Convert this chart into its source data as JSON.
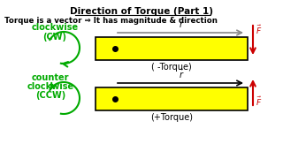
{
  "title": "Direction of Torque (Part 1)",
  "subtitle": "Torque is a vector ⇒ It has magnitude & direction",
  "bg_color": "#ffffff",
  "bar_color": "#ffff00",
  "bar_edge_color": "#000000",
  "cw_label1": "clockwise",
  "cw_label2": "(CW)",
  "ccw_label1": "counter",
  "ccw_label2": "clockwise",
  "ccw_label3": "(CCW)",
  "cw_torque": "( -Torque)",
  "ccw_torque": "(+Torque)",
  "r_label": "$\\vec{r}$",
  "F_label": "$\\vec{F}$",
  "green_color": "#00aa00",
  "red_color": "#cc0000",
  "gray_color": "#888888"
}
